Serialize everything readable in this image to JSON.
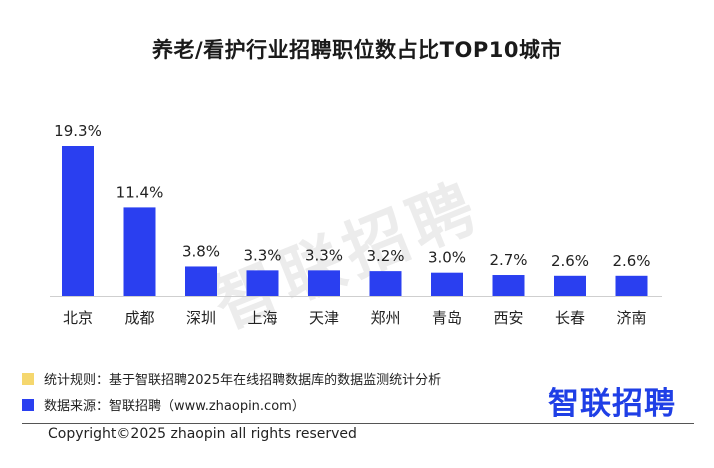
{
  "chart_data": {
    "type": "bar",
    "title": "养老/看护行业招聘职位数占比TOP10城市",
    "categories": [
      "北京",
      "成都",
      "深圳",
      "上海",
      "天津",
      "郑州",
      "青岛",
      "西安",
      "长春",
      "济南"
    ],
    "values": [
      19.3,
      11.4,
      3.8,
      3.3,
      3.3,
      3.2,
      3.0,
      2.7,
      2.6,
      2.6
    ],
    "value_labels": [
      "19.3%",
      "11.4%",
      "3.8%",
      "3.3%",
      "3.3%",
      "3.2%",
      "3.0%",
      "2.7%",
      "2.6%",
      "2.6%"
    ],
    "ylim": [
      0,
      19.3
    ],
    "grid": false,
    "legend": false,
    "bar_color": "#2a3ff0"
  },
  "watermark": "智联招聘",
  "footer": {
    "rule_note": "统计规则：基于智联招聘2025年在线招聘数据库的数据监测统计分析",
    "source_note": "数据来源：智联招聘（www.zhaopin.com）",
    "rule_color": "#f5d76e",
    "source_color": "#2a3ff0",
    "logo": "智联招聘",
    "copyright": "Copyright©2025 zhaopin all rights reserved"
  }
}
